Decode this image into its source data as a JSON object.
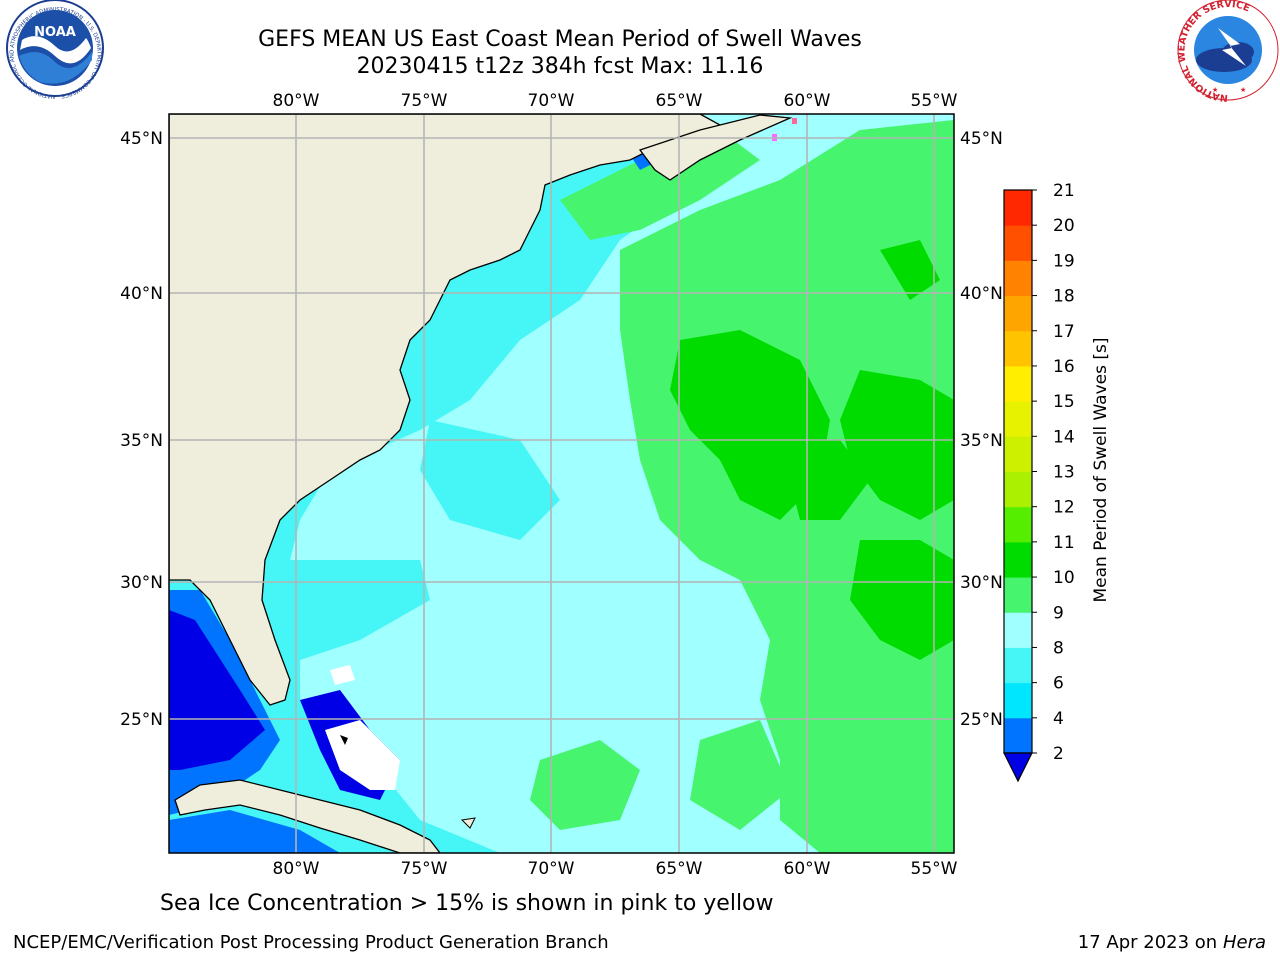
{
  "header": {
    "title_line1": "GEFS MEAN US East Coast Mean Period of Swell Waves",
    "title_line2": "20230415 t12z 384h fcst   Max: 11.16"
  },
  "logos": {
    "left": {
      "text": "NOAA",
      "ring_text": "NATIONAL OCEANIC AND ATMOSPHERIC ADMINISTRATION · U.S. DEPARTMENT OF COMMERCE"
    },
    "right": {
      "ring_text": "NATIONAL WEATHER SERVICE"
    }
  },
  "map": {
    "lon_labels": [
      "80°W",
      "75°W",
      "70°W",
      "65°W",
      "60°W",
      "55°W"
    ],
    "lat_labels": [
      "45°N",
      "40°N",
      "35°N",
      "30°N",
      "25°N"
    ],
    "land_color": "#efeedc",
    "grid_color": "#b4b4b4"
  },
  "colorbar": {
    "label": "Mean Period of Swell Waves [s]",
    "ticks": [
      "2",
      "4",
      "6",
      "8",
      "9",
      "10",
      "11",
      "12",
      "13",
      "14",
      "15",
      "16",
      "17",
      "18",
      "19",
      "20",
      "21"
    ],
    "colors": [
      "#0073ff",
      "#00e6ff",
      "#46f6f6",
      "#a0ffff",
      "#46f46e",
      "#00dc00",
      "#55ee00",
      "#aaf000",
      "#ccf000",
      "#e6f200",
      "#ffee00",
      "#ffc300",
      "#ffa500",
      "#ff8200",
      "#ff5000",
      "#ff2800"
    ],
    "under_color": "#0000e6"
  },
  "notes": {
    "ice": "Sea Ice Concentration > 15% is shown in pink to yellow"
  },
  "footer": {
    "left": "NCEP/EMC/Verification Post Processing Product Generation Branch",
    "date": "17 Apr 2023 on ",
    "machine": "Hera"
  }
}
